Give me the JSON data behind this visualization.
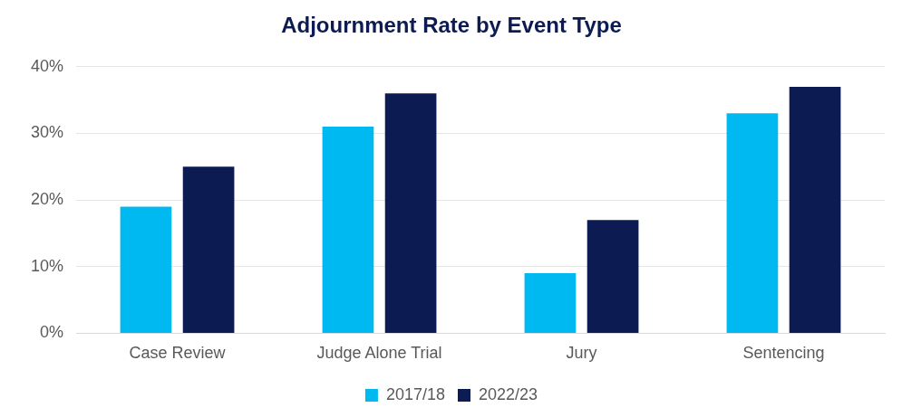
{
  "chart_data": {
    "type": "bar",
    "title": "Adjournment Rate by Event Type",
    "categories": [
      "Case Review",
      "Judge Alone Trial",
      "Jury",
      "Sentencing"
    ],
    "series": [
      {
        "name": "2017/18",
        "color": "#00b9f1",
        "values": [
          19,
          31,
          9,
          33
        ]
      },
      {
        "name": "2022/23",
        "color": "#0c1c52",
        "values": [
          25,
          36,
          17,
          37
        ]
      }
    ],
    "ylim": [
      0,
      40
    ],
    "yticks": [
      {
        "value": 0,
        "label": "0%"
      },
      {
        "value": 10,
        "label": "10%"
      },
      {
        "value": 20,
        "label": "20%"
      },
      {
        "value": 30,
        "label": "30%"
      },
      {
        "value": 40,
        "label": "40%"
      }
    ],
    "grid": "y",
    "legend": "bottom"
  }
}
